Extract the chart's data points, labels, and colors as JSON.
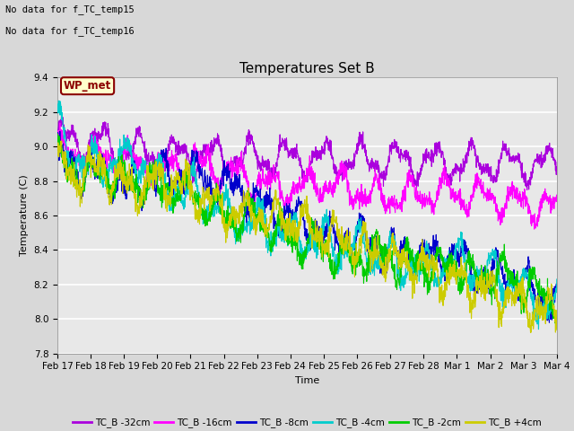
{
  "title": "Temperatures Set B",
  "xlabel": "Time",
  "ylabel": "Temperature (C)",
  "ylim": [
    7.8,
    9.4
  ],
  "xlim": [
    0,
    15
  ],
  "background_color": "#d8d8d8",
  "plot_bg_color": "#e8e8e8",
  "annotations": [
    "No data for f_TC_temp15",
    "No data for f_TC_temp16"
  ],
  "wp_met_label": "WP_met",
  "x_tick_labels": [
    "Feb 17",
    "Feb 18",
    "Feb 19",
    "Feb 20",
    "Feb 21",
    "Feb 22",
    "Feb 23",
    "Feb 24",
    "Feb 25",
    "Feb 26",
    "Feb 27",
    "Feb 28",
    "Mar 1",
    "Mar 2",
    "Mar 3",
    "Mar 4"
  ],
  "series": [
    {
      "label": "TC_B -32cm",
      "color": "#aa00dd"
    },
    {
      "label": "TC_B -16cm",
      "color": "#ff00ff"
    },
    {
      "label": "TC_B -8cm",
      "color": "#0000cc"
    },
    {
      "label": "TC_B -4cm",
      "color": "#00cccc"
    },
    {
      "label": "TC_B -2cm",
      "color": "#00cc00"
    },
    {
      "label": "TC_B +4cm",
      "color": "#cccc00"
    }
  ],
  "seed": 42,
  "n_points": 2000
}
